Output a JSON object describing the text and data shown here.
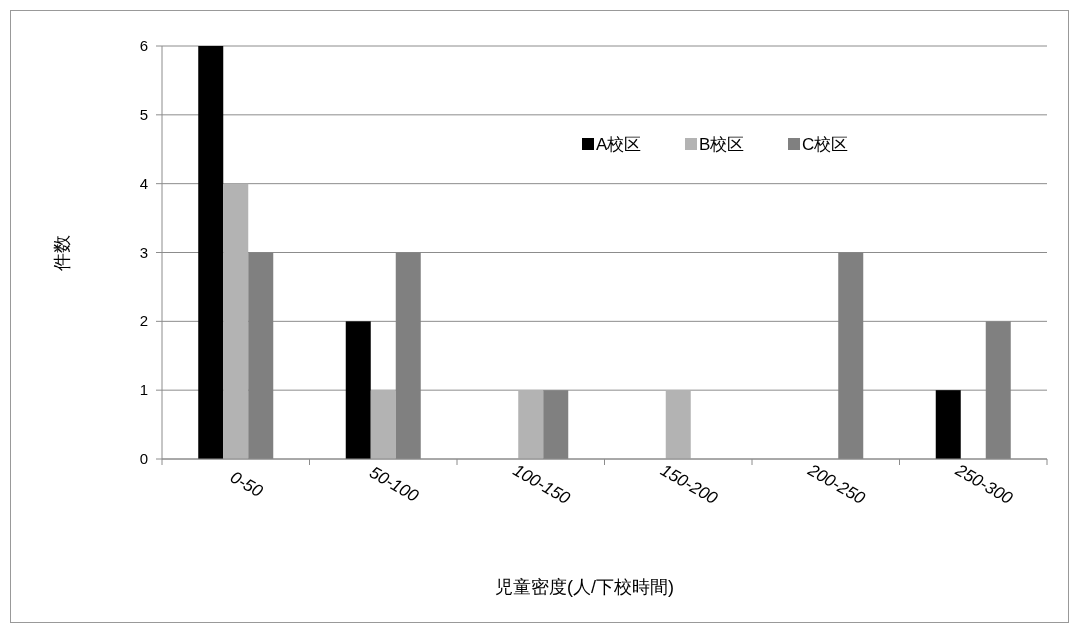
{
  "chart_data": {
    "type": "bar",
    "xlabel": "児童密度(人/下校時間)",
    "ylabel": "件数",
    "categories": [
      "0-50",
      "50-100",
      "100-150",
      "150-200",
      "200-250",
      "250-300"
    ],
    "series": [
      {
        "name": "A校区",
        "color": "#000000",
        "values": [
          6,
          2,
          0,
          0,
          0,
          1
        ]
      },
      {
        "name": "B校区",
        "color": "#b3b3b3",
        "values": [
          4,
          1,
          1,
          1,
          0,
          0
        ]
      },
      {
        "name": "C校区",
        "color": "#808080",
        "values": [
          3,
          3,
          1,
          0,
          3,
          2
        ]
      }
    ],
    "ylim": [
      0,
      6
    ],
    "yticks": [
      0,
      1,
      2,
      3,
      4,
      5,
      6
    ],
    "grid": "y",
    "legend": "top right"
  }
}
